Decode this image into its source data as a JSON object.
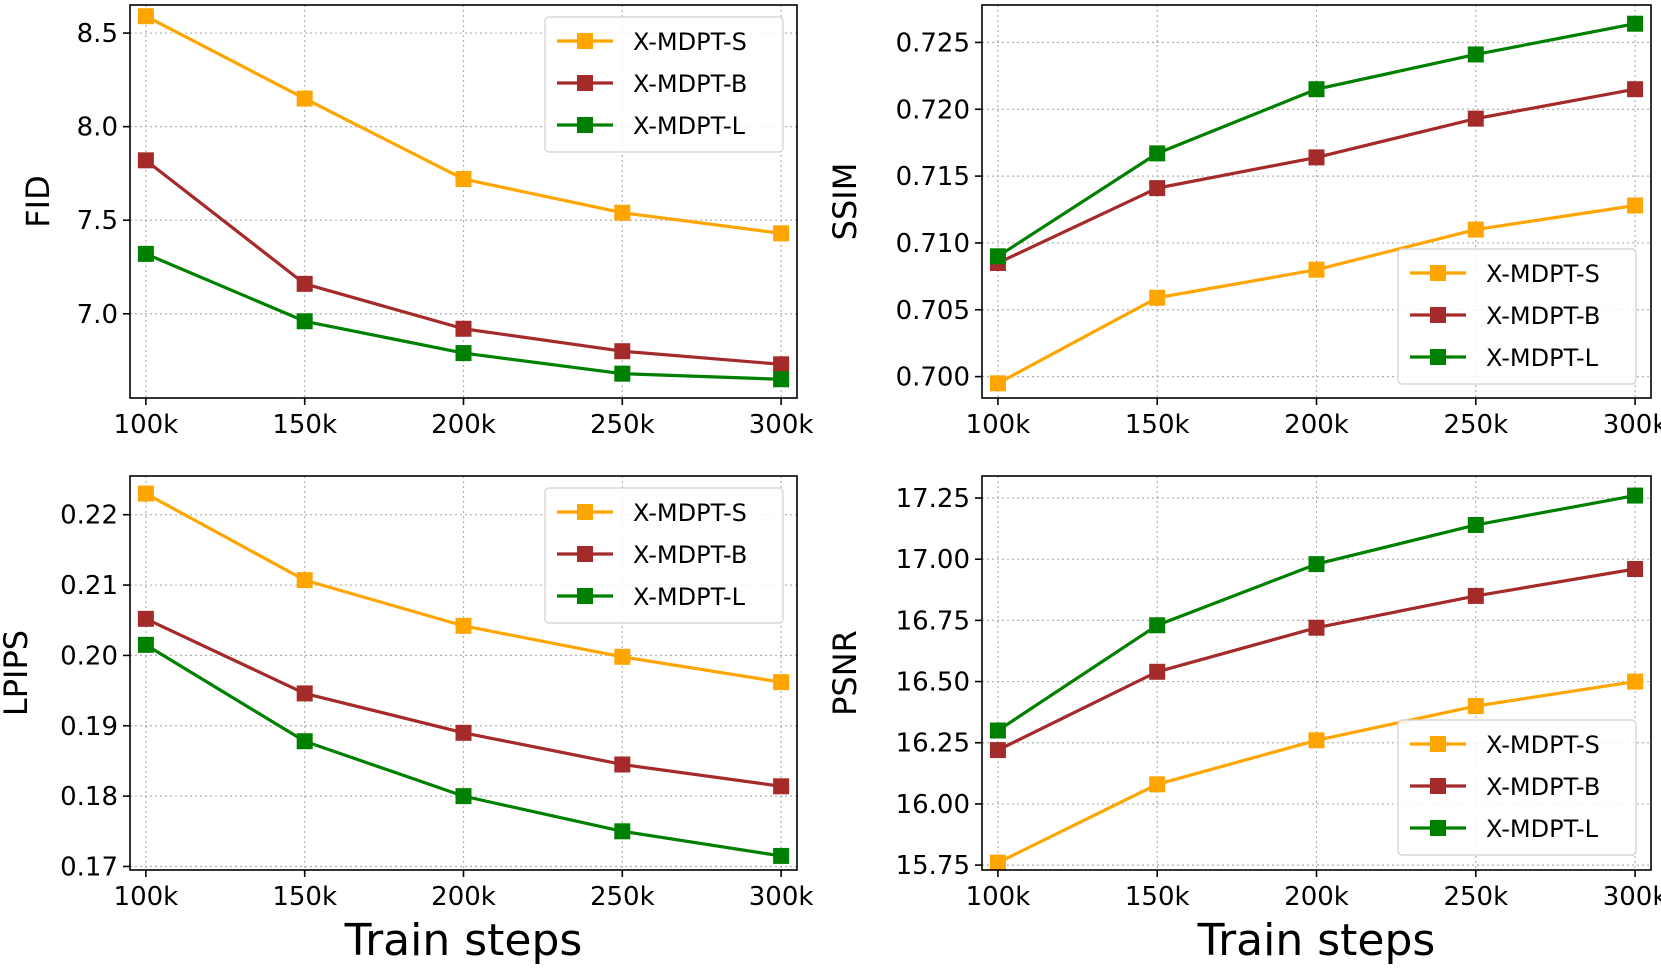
{
  "chart_data": [
    {
      "type": "line",
      "panel": "top-left",
      "ylabel": "FID",
      "xlabel": "",
      "categories": [
        "100k",
        "150k",
        "200k",
        "250k",
        "300k"
      ],
      "x": [
        100,
        150,
        200,
        250,
        300
      ],
      "xlim": [
        95,
        305
      ],
      "ylim": [
        6.55,
        8.65
      ],
      "yticks": [
        7.0,
        7.5,
        8.0,
        8.5
      ],
      "ytick_labels": [
        "7.0",
        "7.5",
        "8.0",
        "8.5"
      ],
      "legend_position": "top-right",
      "grid": true,
      "series": [
        {
          "name": "X-MDPT-S",
          "color": "#FFA500",
          "values": [
            8.59,
            8.15,
            7.72,
            7.54,
            7.43
          ]
        },
        {
          "name": "X-MDPT-B",
          "color": "#A52A2A",
          "values": [
            7.82,
            7.16,
            6.92,
            6.8,
            6.73
          ]
        },
        {
          "name": "X-MDPT-L",
          "color": "#008000",
          "values": [
            7.32,
            6.96,
            6.79,
            6.68,
            6.65
          ]
        }
      ]
    },
    {
      "type": "line",
      "panel": "top-right",
      "ylabel": "SSIM",
      "xlabel": "",
      "categories": [
        "100k",
        "150k",
        "200k",
        "250k",
        "300k"
      ],
      "x": [
        100,
        150,
        200,
        250,
        300
      ],
      "xlim": [
        95,
        305
      ],
      "ylim": [
        0.6984,
        0.7278
      ],
      "yticks": [
        0.7,
        0.705,
        0.71,
        0.715,
        0.72,
        0.725
      ],
      "ytick_labels": [
        "0.700",
        "0.705",
        "0.710",
        "0.715",
        "0.720",
        "0.725"
      ],
      "legend_position": "bottom-right",
      "grid": true,
      "series": [
        {
          "name": "X-MDPT-S",
          "color": "#FFA500",
          "values": [
            0.6995,
            0.7059,
            0.708,
            0.711,
            0.7128
          ]
        },
        {
          "name": "X-MDPT-B",
          "color": "#A52A2A",
          "values": [
            0.7085,
            0.7141,
            0.7164,
            0.7193,
            0.7215
          ]
        },
        {
          "name": "X-MDPT-L",
          "color": "#008000",
          "values": [
            0.709,
            0.7167,
            0.7215,
            0.7241,
            0.7264
          ]
        }
      ]
    },
    {
      "type": "line",
      "panel": "bottom-left",
      "ylabel": "LPIPS",
      "xlabel": "Train steps",
      "categories": [
        "100k",
        "150k",
        "200k",
        "250k",
        "300k"
      ],
      "x": [
        100,
        150,
        200,
        250,
        300
      ],
      "xlim": [
        95,
        305
      ],
      "ylim": [
        0.1695,
        0.2255
      ],
      "yticks": [
        0.17,
        0.18,
        0.19,
        0.2,
        0.21,
        0.22
      ],
      "ytick_labels": [
        "0.17",
        "0.18",
        "0.19",
        "0.20",
        "0.21",
        "0.22"
      ],
      "legend_position": "top-right",
      "grid": true,
      "series": [
        {
          "name": "X-MDPT-S",
          "color": "#FFA500",
          "values": [
            0.223,
            0.2107,
            0.2042,
            0.1998,
            0.1962
          ]
        },
        {
          "name": "X-MDPT-B",
          "color": "#A52A2A",
          "values": [
            0.2052,
            0.1946,
            0.189,
            0.1845,
            0.1814
          ]
        },
        {
          "name": "X-MDPT-L",
          "color": "#008000",
          "values": [
            0.2015,
            0.1878,
            0.18,
            0.175,
            0.1715
          ]
        }
      ]
    },
    {
      "type": "line",
      "panel": "bottom-right",
      "ylabel": "PSNR",
      "xlabel": "Train steps",
      "categories": [
        "100k",
        "150k",
        "200k",
        "250k",
        "300k"
      ],
      "x": [
        100,
        150,
        200,
        250,
        300
      ],
      "xlim": [
        95,
        305
      ],
      "ylim": [
        15.73,
        17.34
      ],
      "yticks": [
        15.75,
        16.0,
        16.25,
        16.5,
        16.75,
        17.0,
        17.25
      ],
      "ytick_labels": [
        "15.75",
        "16.00",
        "16.25",
        "16.50",
        "16.75",
        "17.00",
        "17.25"
      ],
      "legend_position": "bottom-right",
      "grid": true,
      "series": [
        {
          "name": "X-MDPT-S",
          "color": "#FFA500",
          "values": [
            15.76,
            16.08,
            16.26,
            16.4,
            16.5
          ]
        },
        {
          "name": "X-MDPT-B",
          "color": "#A52A2A",
          "values": [
            16.22,
            16.54,
            16.72,
            16.85,
            16.96
          ]
        },
        {
          "name": "X-MDPT-L",
          "color": "#008000",
          "values": [
            16.3,
            16.73,
            16.98,
            17.14,
            17.26
          ]
        }
      ]
    }
  ]
}
